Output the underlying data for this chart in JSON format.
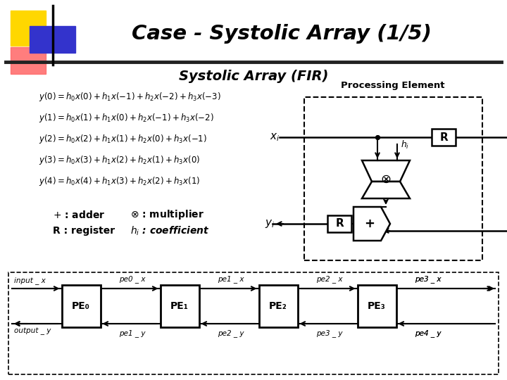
{
  "title": "Case - Systolic Array (1/5)",
  "subtitle": "Systolic Array (FIR)",
  "bg_color": "#ffffff",
  "logo_colors": {
    "yellow": "#FFD700",
    "red": "#FF6666",
    "blue": "#3333CC"
  },
  "pe_label": "Processing Element",
  "pe_boxes": [
    "PE₀",
    "PE₁",
    "PE₂",
    "PE₃"
  ],
  "signal_input_x": "input _ x",
  "signal_output_y": "output _ y",
  "signal_x_labels": [
    "pe0 _ x",
    "pe1 _ x",
    "pe2 _ x",
    "pe3 _ x"
  ],
  "signal_y_labels": [
    "pe1 _ y",
    "pe2 _ y",
    "pe3 _ y",
    "pe4 _ y"
  ]
}
